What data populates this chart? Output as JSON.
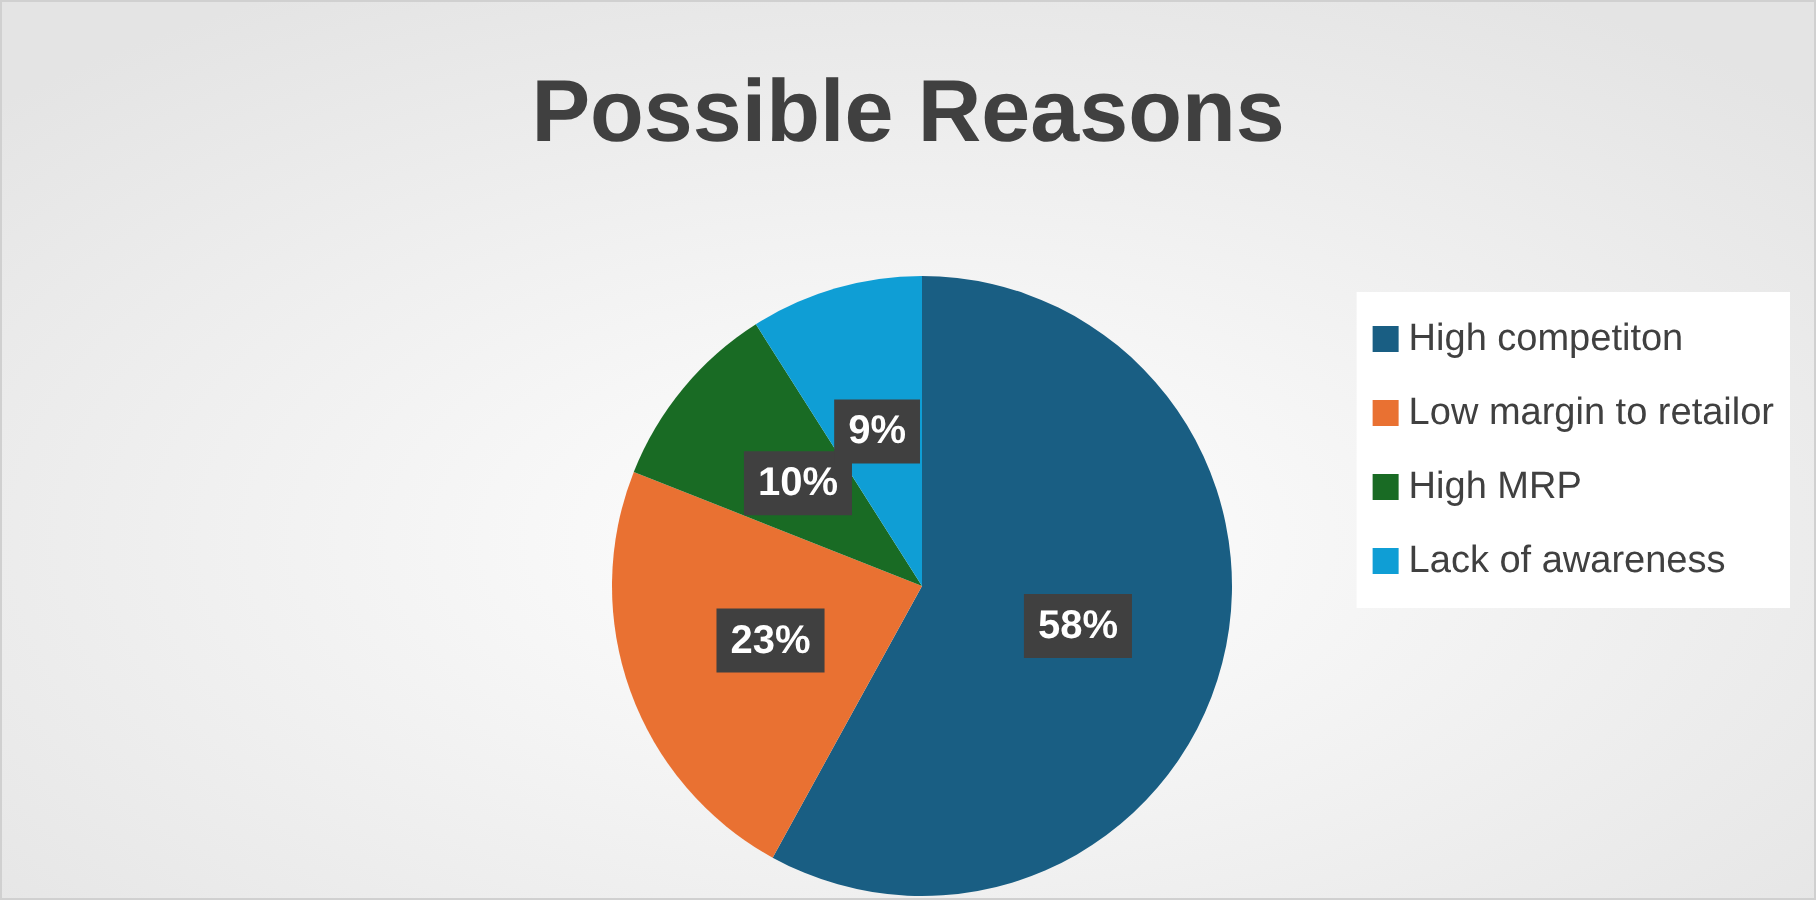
{
  "chart_data": {
    "type": "pie",
    "title": "Possible Reasons",
    "categories": [
      "High competiton",
      "Low margin to retailor",
      "High MRP",
      "Lack of awareness"
    ],
    "values": [
      58,
      23,
      10,
      9
    ],
    "colors": [
      "#195e83",
      "#e97132",
      "#196b24",
      "#0f9ed5"
    ],
    "value_labels": [
      "58%",
      "23%",
      "10%",
      "9%"
    ],
    "legend": "right"
  }
}
